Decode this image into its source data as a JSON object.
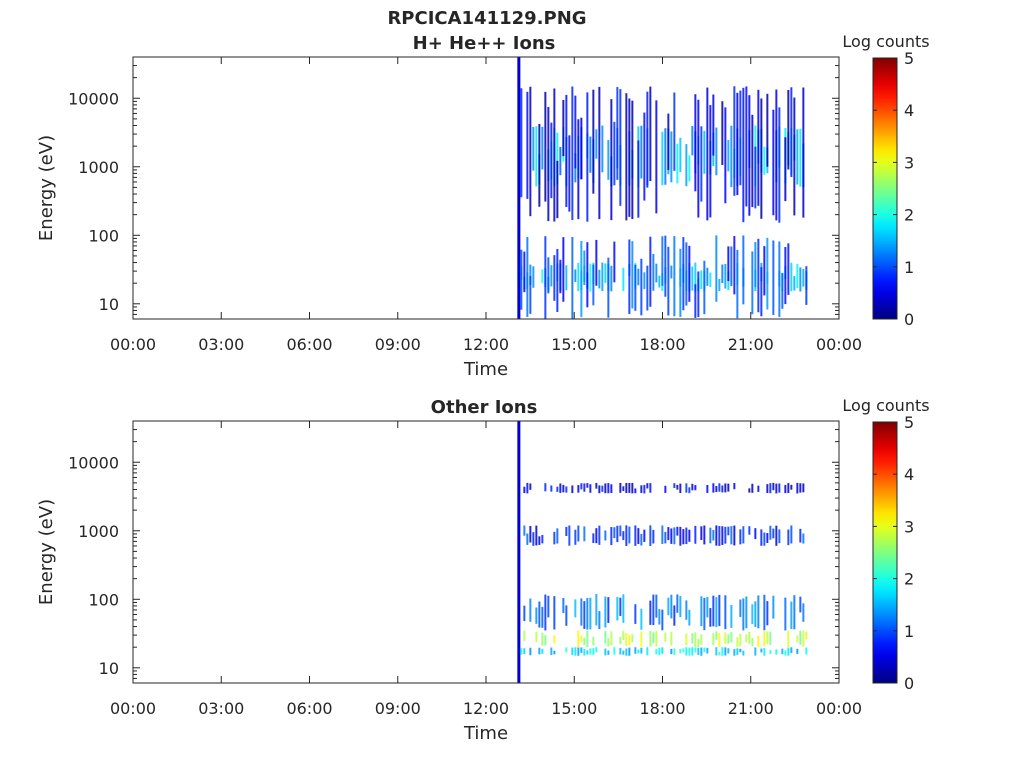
{
  "title": "RPCICA141129.PNG",
  "chart_data": [
    {
      "type": "heatmap",
      "title": "H+ He++ Ions",
      "xlabel": "Time",
      "ylabel": "Energy (eV)",
      "x_ticks": [
        "00:00",
        "03:00",
        "06:00",
        "09:00",
        "12:00",
        "15:00",
        "18:00",
        "21:00",
        "00:00"
      ],
      "x_range_hours": [
        0,
        24
      ],
      "y_scale": "log",
      "y_ticks": [
        "10",
        "100",
        "1000",
        "10000"
      ],
      "y_range": [
        6,
        40000
      ],
      "colorbar": {
        "label": "Log counts",
        "ticks": [
          "0",
          "1",
          "2",
          "3",
          "4",
          "5"
        ],
        "range": [
          0,
          5
        ],
        "colormap": "jet"
      },
      "data_start_hour": 13.1,
      "data_end_hour": 22.9,
      "bands": [
        {
          "energy_low": 15,
          "energy_high": 40,
          "log_counts": 1.6
        },
        {
          "energy_low": 6,
          "energy_high": 100,
          "log_counts": 1.0
        },
        {
          "energy_low": 500,
          "energy_high": 4000,
          "log_counts": 1.5
        },
        {
          "energy_low": 150,
          "energy_high": 15000,
          "log_counts": 0.5
        }
      ]
    },
    {
      "type": "heatmap",
      "title": "Other Ions",
      "xlabel": "Time",
      "ylabel": "Energy (eV)",
      "x_ticks": [
        "00:00",
        "03:00",
        "06:00",
        "09:00",
        "12:00",
        "15:00",
        "18:00",
        "21:00",
        "00:00"
      ],
      "x_range_hours": [
        0,
        24
      ],
      "y_scale": "log",
      "y_ticks": [
        "10",
        "100",
        "1000",
        "10000"
      ],
      "y_range": [
        6,
        40000
      ],
      "colorbar": {
        "label": "Log counts",
        "ticks": [
          "0",
          "1",
          "2",
          "3",
          "4",
          "5"
        ],
        "range": [
          0,
          5
        ],
        "colormap": "jet"
      },
      "data_start_hour": 13.1,
      "data_end_hour": 22.9,
      "bands": [
        {
          "energy_low": 20,
          "energy_high": 35,
          "log_counts": 2.8
        },
        {
          "energy_low": 15,
          "energy_high": 20,
          "log_counts": 1.7
        },
        {
          "energy_low": 35,
          "energy_high": 120,
          "log_counts": 1.2
        },
        {
          "energy_low": 600,
          "energy_high": 1200,
          "log_counts": 0.8
        },
        {
          "energy_low": 3500,
          "energy_high": 5000,
          "log_counts": 0.5
        }
      ]
    }
  ]
}
